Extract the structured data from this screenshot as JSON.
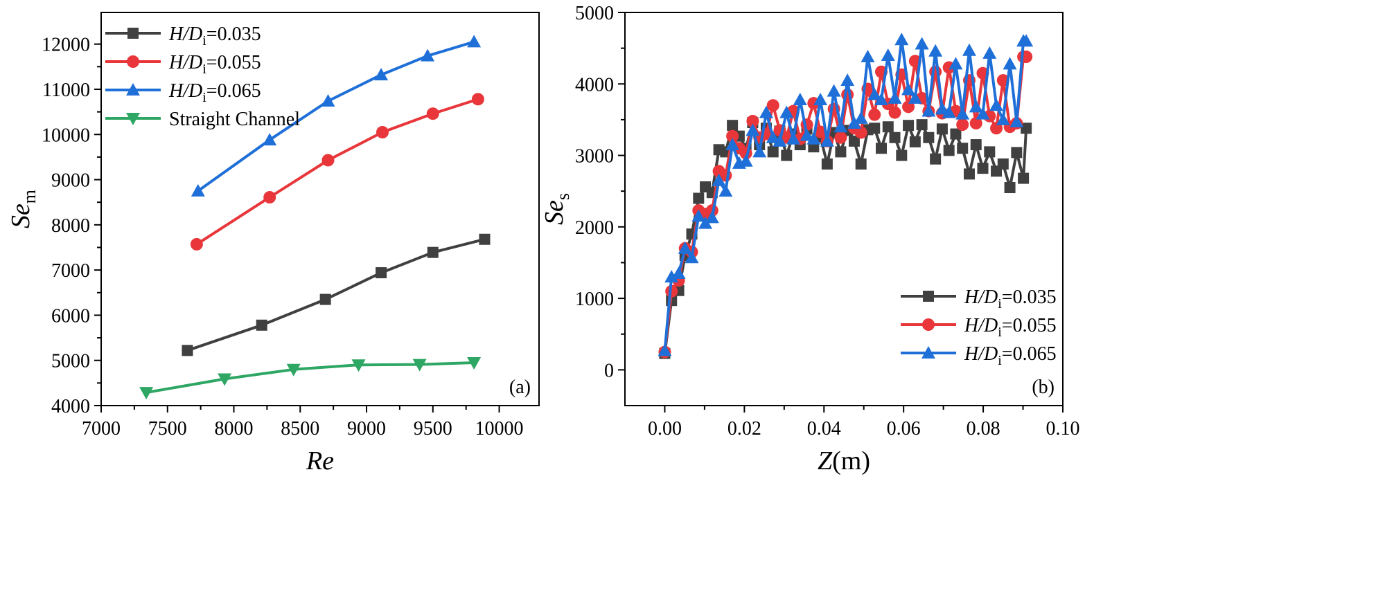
{
  "chart_data": [
    {
      "type": "line",
      "panel_label": "(a)",
      "xlabel": "Re",
      "ylabel": {
        "main": "Se",
        "sub": "m"
      },
      "xlim": [
        7000,
        10300
      ],
      "ylim": [
        4000,
        12700
      ],
      "xticks": [
        7000,
        7500,
        8000,
        8500,
        9000,
        9500,
        10000
      ],
      "yticks": [
        4000,
        5000,
        6000,
        7000,
        8000,
        9000,
        10000,
        11000,
        12000
      ],
      "legend_position": "top-left",
      "series": [
        {
          "name": "H/Di=0.035",
          "legend": {
            "pre": "H/D",
            "sub": "i",
            "post": "=0.035"
          },
          "color": "#404040",
          "marker": "square",
          "x": [
            7650,
            8210,
            8690,
            9110,
            9500,
            9890
          ],
          "y": [
            5220,
            5780,
            6350,
            6940,
            7390,
            7680
          ]
        },
        {
          "name": "H/Di=0.055",
          "legend": {
            "pre": "H/D",
            "sub": "i",
            "post": "=0.055"
          },
          "color": "#e8363a",
          "marker": "circle",
          "x": [
            7720,
            8270,
            8710,
            9120,
            9500,
            9840
          ],
          "y": [
            7570,
            8610,
            9430,
            10050,
            10460,
            10780
          ]
        },
        {
          "name": "H/Di=0.065",
          "legend": {
            "pre": "H/D",
            "sub": "i",
            "post": "=0.065"
          },
          "color": "#1f6fd8",
          "marker": "triangle-up",
          "x": [
            7730,
            8270,
            8710,
            9110,
            9460,
            9810
          ],
          "y": [
            8750,
            9880,
            10740,
            11320,
            11740,
            12050
          ]
        },
        {
          "name": "Straight Channel",
          "legend": {
            "pre": "Straight Channel",
            "sub": "",
            "post": ""
          },
          "color": "#2ea664",
          "marker": "triangle-down",
          "x": [
            7340,
            7930,
            8450,
            8940,
            9400,
            9810
          ],
          "y": [
            4290,
            4590,
            4800,
            4900,
            4910,
            4950
          ]
        }
      ]
    },
    {
      "type": "line",
      "panel_label": "(b)",
      "xlabel": "Z(m)",
      "ylabel": {
        "main": "Se",
        "sub": "s"
      },
      "xlim": [
        -0.01,
        0.1
      ],
      "ylim": [
        -500,
        5000
      ],
      "xticks": [
        0.0,
        0.02,
        0.04,
        0.06,
        0.08,
        0.1
      ],
      "xtick_labels": [
        "0.00",
        "0.02",
        "0.04",
        "0.06",
        "0.08",
        "0.10"
      ],
      "yticks": [
        0,
        1000,
        2000,
        3000,
        4000,
        5000
      ],
      "legend_position": "bottom-right",
      "series": [
        {
          "name": "H/Di=0.035",
          "legend": {
            "pre": "H/D",
            "sub": "i",
            "post": "=0.035"
          },
          "color": "#404040",
          "marker": "square",
          "x": [
            0.0,
            0.0017,
            0.0035,
            0.0051,
            0.0068,
            0.0085,
            0.0102,
            0.0119,
            0.0136,
            0.0153,
            0.017,
            0.0187,
            0.0204,
            0.0221,
            0.0238,
            0.0255,
            0.0272,
            0.0289,
            0.0306,
            0.0323,
            0.034,
            0.0357,
            0.0374,
            0.0391,
            0.0408,
            0.0425,
            0.0442,
            0.0459,
            0.0476,
            0.0493,
            0.051,
            0.0527,
            0.0544,
            0.0561,
            0.0578,
            0.0595,
            0.0612,
            0.0629,
            0.0646,
            0.0663,
            0.068,
            0.0697,
            0.0714,
            0.0731,
            0.0748,
            0.0765,
            0.0782,
            0.0799,
            0.0816,
            0.0833,
            0.085,
            0.0867,
            0.0884,
            0.0901,
            0.0908
          ],
          "y": [
            230,
            970,
            1110,
            1600,
            1900,
            2400,
            2560,
            2480,
            3080,
            3050,
            3420,
            3270,
            3100,
            3460,
            3150,
            3380,
            3050,
            3340,
            3000,
            3300,
            3150,
            3370,
            3120,
            3260,
            2880,
            3320,
            3050,
            3350,
            3200,
            2880,
            3360,
            3380,
            3100,
            3400,
            3250,
            3000,
            3420,
            3190,
            3430,
            3250,
            2950,
            3370,
            3070,
            3300,
            3100,
            2740,
            3150,
            2820,
            3050,
            2780,
            2880,
            2550,
            3040,
            2680,
            3380
          ]
        },
        {
          "name": "H/Di=0.055",
          "legend": {
            "pre": "H/D",
            "sub": "i",
            "post": "=0.055"
          },
          "color": "#e8363a",
          "marker": "circle",
          "x": [
            0.0,
            0.0017,
            0.0035,
            0.0051,
            0.0068,
            0.0085,
            0.0102,
            0.0119,
            0.0136,
            0.0153,
            0.017,
            0.0187,
            0.0204,
            0.0221,
            0.0238,
            0.0255,
            0.0272,
            0.0289,
            0.0306,
            0.0323,
            0.034,
            0.0357,
            0.0374,
            0.0391,
            0.0408,
            0.0425,
            0.0442,
            0.0459,
            0.0476,
            0.0493,
            0.051,
            0.0527,
            0.0544,
            0.0561,
            0.0578,
            0.0595,
            0.0612,
            0.0629,
            0.0646,
            0.0663,
            0.068,
            0.0697,
            0.0714,
            0.0731,
            0.0748,
            0.0765,
            0.0782,
            0.0799,
            0.0816,
            0.0833,
            0.085,
            0.0867,
            0.0884,
            0.0901,
            0.0908
          ],
          "y": [
            250,
            1100,
            1250,
            1700,
            1650,
            2230,
            2180,
            2230,
            2780,
            2720,
            3270,
            3100,
            3030,
            3480,
            3250,
            3300,
            3700,
            3350,
            3250,
            3620,
            3230,
            3430,
            3730,
            3330,
            3200,
            3650,
            3250,
            3850,
            3380,
            3320,
            3930,
            3570,
            4170,
            3720,
            3600,
            4130,
            3680,
            4320,
            3800,
            3620,
            4170,
            3590,
            4230,
            3620,
            3430,
            4050,
            3450,
            4150,
            3550,
            3380,
            4050,
            3400,
            3450,
            4380,
            4380
          ]
        },
        {
          "name": "H/Di=0.065",
          "legend": {
            "pre": "H/D",
            "sub": "i",
            "post": "=0.065"
          },
          "color": "#1f6fd8",
          "marker": "triangle-up",
          "x": [
            0.0,
            0.0017,
            0.0035,
            0.0051,
            0.0068,
            0.0085,
            0.0102,
            0.0119,
            0.0136,
            0.0153,
            0.017,
            0.0187,
            0.0204,
            0.0221,
            0.0238,
            0.0255,
            0.0272,
            0.0289,
            0.0306,
            0.0323,
            0.034,
            0.0357,
            0.0374,
            0.0391,
            0.0408,
            0.0425,
            0.0442,
            0.0459,
            0.0476,
            0.0493,
            0.051,
            0.0527,
            0.0544,
            0.0561,
            0.0578,
            0.0595,
            0.0612,
            0.0629,
            0.0646,
            0.0663,
            0.068,
            0.0697,
            0.0714,
            0.0731,
            0.0748,
            0.0765,
            0.0782,
            0.0799,
            0.0816,
            0.0833,
            0.085,
            0.0867,
            0.0884,
            0.0901,
            0.0908
          ],
          "y": [
            270,
            1300,
            1350,
            1700,
            1570,
            2150,
            2050,
            2130,
            2650,
            2500,
            3150,
            2890,
            2920,
            3350,
            3050,
            3600,
            3250,
            3200,
            3600,
            3230,
            3780,
            3280,
            3230,
            3780,
            3200,
            3900,
            3400,
            4050,
            3450,
            3520,
            4380,
            3850,
            3780,
            4400,
            3800,
            4620,
            3920,
            3800,
            4560,
            3620,
            4460,
            3650,
            3600,
            4280,
            3580,
            4470,
            3680,
            3580,
            4430,
            3700,
            3500,
            4280,
            3470,
            4600,
            4600
          ]
        }
      ]
    }
  ]
}
